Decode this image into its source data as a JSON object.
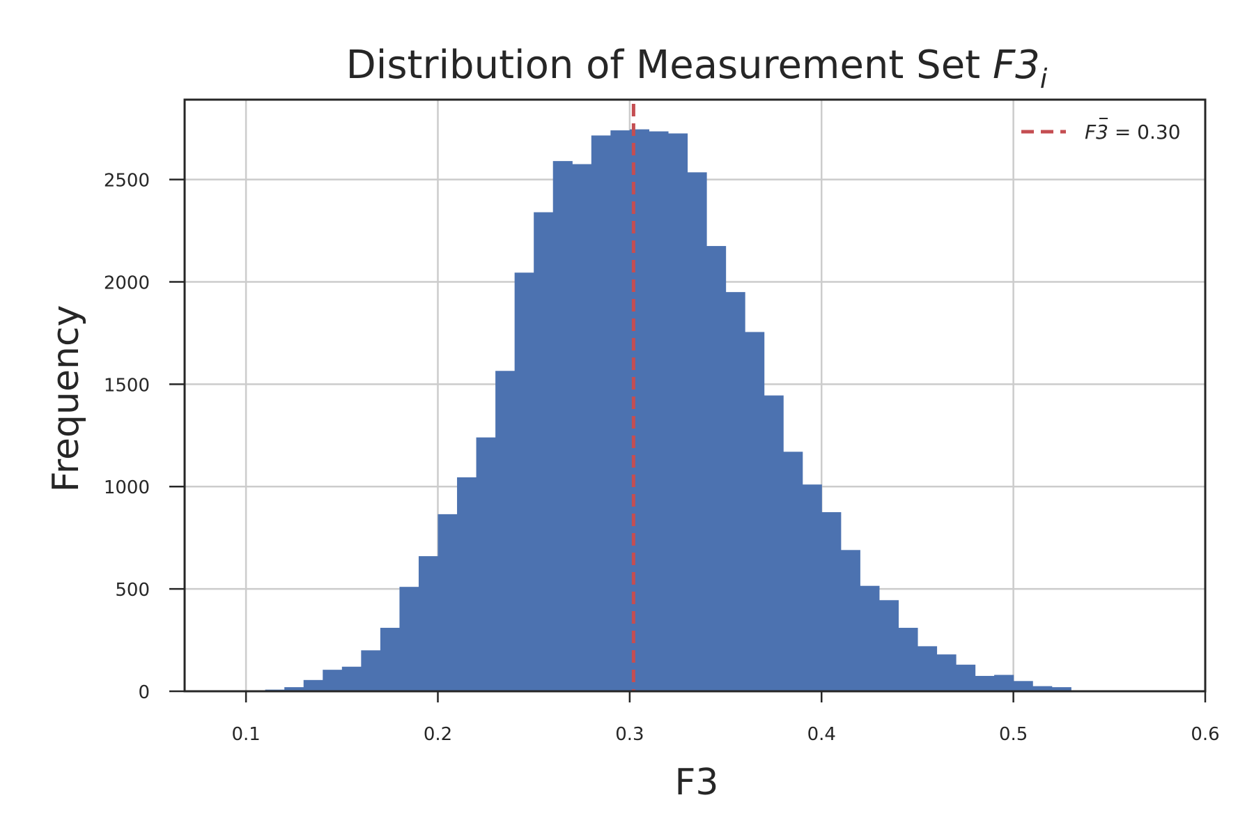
{
  "chart_data": {
    "type": "bar",
    "title_main": "Distribution of Measurement Set ",
    "title_var": "F3",
    "title_sub": "i",
    "xlabel": "F3",
    "ylabel": "Frequency",
    "xlim": [
      0.068,
      0.6
    ],
    "ylim": [
      0,
      2890
    ],
    "grid": true,
    "bar_color": "#4c72b0",
    "mean_line_color": "#c44e52",
    "xticks": [
      0.1,
      0.2,
      0.3,
      0.4,
      0.5,
      0.6
    ],
    "xtick_labels": [
      "0.1",
      "0.2",
      "0.3",
      "0.4",
      "0.5",
      "0.6"
    ],
    "yticks": [
      0,
      500,
      1000,
      1500,
      2000,
      2500
    ],
    "ytick_labels": [
      "0",
      "500",
      "1000",
      "1500",
      "2000",
      "2500"
    ],
    "bin_edges": [
      0.1,
      0.11,
      0.12,
      0.13,
      0.14,
      0.15,
      0.16,
      0.17,
      0.18,
      0.19,
      0.2,
      0.21,
      0.22,
      0.23,
      0.24,
      0.25,
      0.26,
      0.27,
      0.28,
      0.29,
      0.3,
      0.31,
      0.32,
      0.33,
      0.34,
      0.35,
      0.36,
      0.37,
      0.38,
      0.39,
      0.4,
      0.41,
      0.42,
      0.43,
      0.44,
      0.45,
      0.46,
      0.47,
      0.48,
      0.49,
      0.5,
      0.51,
      0.52,
      0.53
    ],
    "values": [
      2,
      8,
      20,
      55,
      105,
      120,
      200,
      310,
      510,
      660,
      865,
      1045,
      1240,
      1565,
      2045,
      2340,
      2590,
      2575,
      2715,
      2740,
      2745,
      2735,
      2725,
      2535,
      2175,
      1950,
      1755,
      1445,
      1170,
      1010,
      875,
      690,
      515,
      445,
      310,
      220,
      180,
      130,
      75,
      80,
      50,
      25,
      20
    ],
    "mean": 0.302,
    "legend": {
      "label_var": "F3",
      "label_text": " = 0.30",
      "location": "top-right"
    }
  }
}
